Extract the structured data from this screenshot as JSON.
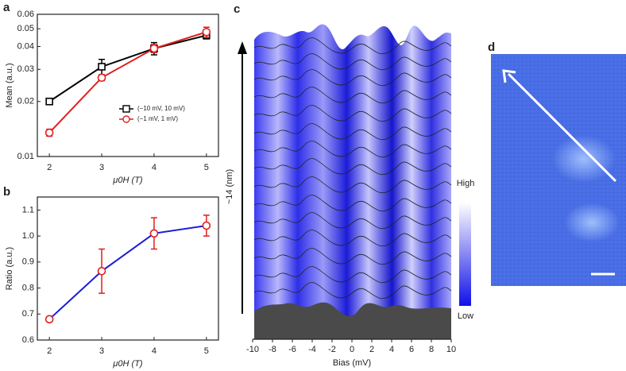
{
  "chart_data": [
    {
      "type": "line",
      "panel_label": "a",
      "y_label": "Mean (a.u.)",
      "x_label": "μ0H (T)",
      "x": [
        2,
        3,
        4,
        5
      ],
      "xlim": [
        1.77,
        5.23
      ],
      "xticks": [
        2,
        3,
        4,
        5
      ],
      "log_y": true,
      "ylim": [
        0.01,
        0.06
      ],
      "yticks": [
        0.01,
        0.02,
        0.03,
        0.04,
        0.05,
        0.06
      ],
      "legend": "lower right",
      "series": [
        {
          "name": "(−10 mV, 10 mV)",
          "color": "#000000",
          "marker_color": "#000000",
          "marker": "square",
          "values": [
            0.02,
            0.031,
            0.039,
            0.046
          ],
          "errors": [
            0.0003,
            0.003,
            0.003,
            0.002
          ]
        },
        {
          "name": "(−1 mV, 1 mV)",
          "color": "#e02020",
          "marker_color": "#e02020",
          "marker": "circle",
          "values": [
            0.0135,
            0.027,
            0.039,
            0.048
          ],
          "errors": [
            0.0006,
            0.001,
            0.002,
            0.003
          ]
        }
      ]
    },
    {
      "type": "line",
      "panel_label": "b",
      "y_label": "Ratio (a.u.)",
      "x_label": "μ0H (T)",
      "x": [
        2,
        3,
        4,
        5
      ],
      "xlim": [
        1.77,
        5.23
      ],
      "xticks": [
        2,
        3,
        4,
        5
      ],
      "log_y": false,
      "ylim": [
        0.6,
        1.15
      ],
      "yticks": [
        0.6,
        0.7,
        0.8,
        0.9,
        {
          "value": 1,
          "label": "1.0"
        },
        1.1
      ],
      "series": [
        {
          "color": "#1a1adb",
          "marker_color": "#e02020",
          "marker": "circle",
          "values": [
            0.68,
            0.865,
            1.01,
            1.04
          ],
          "errors": [
            0.005,
            0.085,
            0.06,
            0.04
          ]
        }
      ]
    },
    {
      "type": "waterfall",
      "panel_label": "c",
      "x_label": "Bias (mV)",
      "y_label": "~14 (nm)",
      "xlim": [
        -10,
        10
      ],
      "xticks": [
        -10,
        -8,
        -6,
        -4,
        -2,
        0,
        2,
        4,
        6,
        8,
        10
      ],
      "colorbar_labels": [
        "High",
        "Low"
      ]
    },
    {
      "type": "image",
      "panel_label": "d"
    }
  ]
}
